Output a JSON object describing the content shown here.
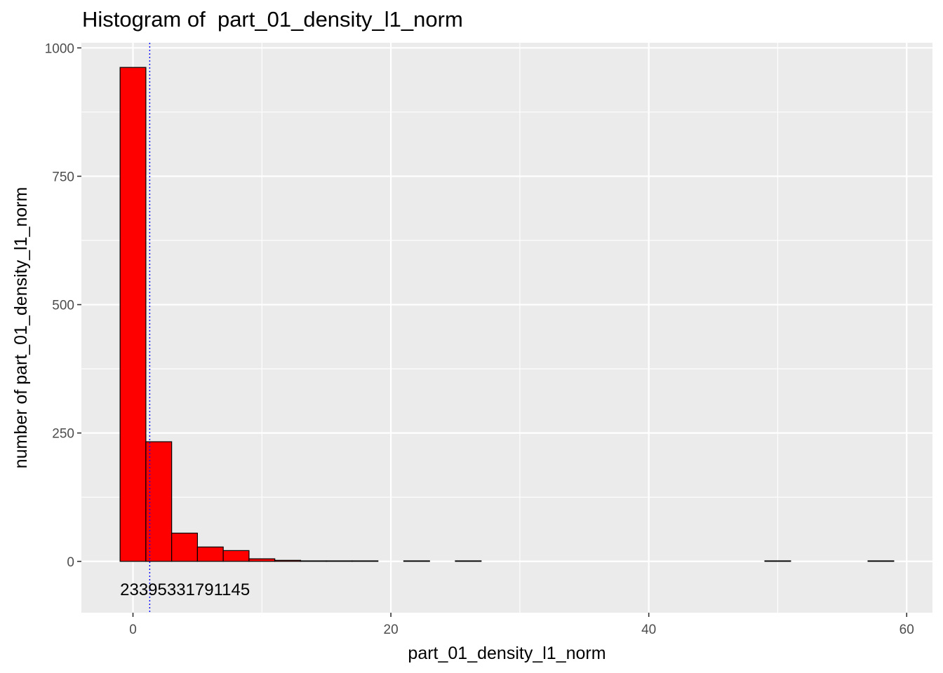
{
  "chart_data": {
    "type": "bar",
    "title": "Histogram of  part_01_density_l1_norm",
    "xlabel": "part_01_density_l1_norm",
    "ylabel": "number of  part_01_density_l1_norm",
    "xlim": [
      -4,
      62
    ],
    "ylim": [
      -100,
      1010
    ],
    "x_ticks": [
      0,
      20,
      40,
      60
    ],
    "y_ticks": [
      0,
      250,
      500,
      750,
      1000
    ],
    "bin_width": 2,
    "bins": [
      {
        "x0": -1,
        "x1": 1,
        "count": 962
      },
      {
        "x0": 1,
        "x1": 3,
        "count": 233
      },
      {
        "x0": 3,
        "x1": 5,
        "count": 55
      },
      {
        "x0": 5,
        "x1": 7,
        "count": 28
      },
      {
        "x0": 7,
        "x1": 9,
        "count": 21
      },
      {
        "x0": 9,
        "x1": 11,
        "count": 5
      },
      {
        "x0": 11,
        "x1": 13,
        "count": 2
      },
      {
        "x0": 13,
        "x1": 15,
        "count": 1
      },
      {
        "x0": 15,
        "x1": 17,
        "count": 1
      },
      {
        "x0": 17,
        "x1": 19,
        "count": 1
      },
      {
        "x0": 19,
        "x1": 21,
        "count": 0
      },
      {
        "x0": 21,
        "x1": 23,
        "count": 1
      },
      {
        "x0": 23,
        "x1": 25,
        "count": 0
      },
      {
        "x0": 25,
        "x1": 27,
        "count": 1
      },
      {
        "x0": 27,
        "x1": 29,
        "count": 0
      },
      {
        "x0": 29,
        "x1": 31,
        "count": 0
      },
      {
        "x0": 31,
        "x1": 33,
        "count": 0
      },
      {
        "x0": 33,
        "x1": 35,
        "count": 0
      },
      {
        "x0": 35,
        "x1": 37,
        "count": 0
      },
      {
        "x0": 37,
        "x1": 39,
        "count": 0
      },
      {
        "x0": 39,
        "x1": 41,
        "count": 0
      },
      {
        "x0": 41,
        "x1": 43,
        "count": 0
      },
      {
        "x0": 43,
        "x1": 45,
        "count": 0
      },
      {
        "x0": 45,
        "x1": 47,
        "count": 0
      },
      {
        "x0": 47,
        "x1": 49,
        "count": 0
      },
      {
        "x0": 49,
        "x1": 51,
        "count": 1
      },
      {
        "x0": 51,
        "x1": 53,
        "count": 0
      },
      {
        "x0": 53,
        "x1": 55,
        "count": 0
      },
      {
        "x0": 55,
        "x1": 57,
        "count": 0
      },
      {
        "x0": 57,
        "x1": 59,
        "count": 1
      }
    ],
    "count_label_text": "23395331791145",
    "reference_line": {
      "x": 1.3,
      "style": "dotted",
      "color": "#0000ff"
    },
    "bar_fill": "#ff0000",
    "bar_stroke": "#000000",
    "panel_background": "#ebebeb",
    "grid": true
  }
}
